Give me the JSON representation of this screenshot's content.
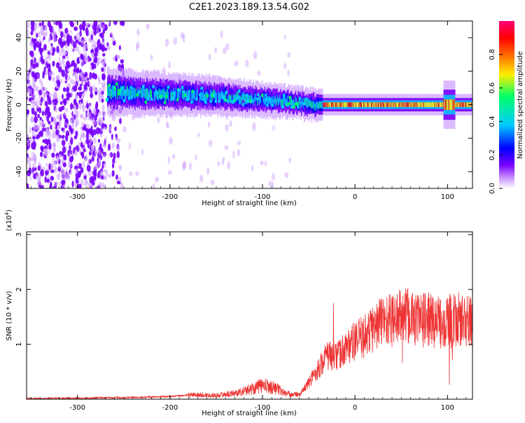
{
  "title": "C2E1.2023.189.13.54.G02",
  "spectrogram": {
    "type": "heatmap",
    "xlabel": "Height of straight line (km)",
    "ylabel": "Frequency (Hz)",
    "xlim": [
      -355,
      127
    ],
    "ylim": [
      -50,
      50
    ],
    "xticks": [
      -300,
      -200,
      -100,
      0,
      100
    ],
    "yticks": [
      40,
      20,
      0,
      -20,
      -40
    ],
    "colorbar": {
      "label": "Normalized spectral amplitude",
      "ticks": [
        "0.0",
        "0.2",
        "0.4",
        "0.6",
        "0.8"
      ],
      "colors": [
        "#ffffff",
        "#cc99ff",
        "#7700ff",
        "#0000ff",
        "#00ccff",
        "#00ff66",
        "#ffee00",
        "#ff6600",
        "#ff0000",
        "#ff00aa"
      ]
    }
  },
  "snr": {
    "type": "line",
    "xlabel": "Height of straight line (km)",
    "ylabel": "SNR (10 * v/v)",
    "scale_label": "(x10",
    "scale_exp": "4",
    "xlim": [
      -355,
      127
    ],
    "ylim": [
      0,
      3.05
    ],
    "xticks": [
      -300,
      -200,
      -100,
      0,
      100
    ],
    "yticks": [
      "3",
      "2",
      "1"
    ],
    "yticks_values": [
      3,
      2,
      1
    ],
    "color": "#ee3333"
  },
  "chart_data": [
    {
      "type": "heatmap",
      "title": "C2E1.2023.189.13.54.G02",
      "xlabel": "Height of straight line (km)",
      "ylabel": "Frequency (Hz)",
      "xlim": [
        -355,
        127
      ],
      "ylim": [
        -50,
        50
      ],
      "colorbar_label": "Normalized spectral amplitude",
      "colorbar_range": [
        0,
        1
      ],
      "ridge": {
        "x": [
          -270,
          -250,
          -200,
          -150,
          -100,
          -75,
          -60,
          -50,
          -40,
          0,
          50,
          100,
          105,
          127
        ],
        "y": [
          8,
          7,
          6,
          5,
          3,
          2,
          1,
          0,
          0,
          0,
          0,
          0,
          0,
          0
        ]
      }
    },
    {
      "type": "line",
      "xlabel": "Height of straight line (km)",
      "ylabel": "SNR (10 * v/v)",
      "y_multiplier": "x10^4",
      "xlim": [
        -355,
        127
      ],
      "ylim": [
        0,
        3.05
      ],
      "series": [
        {
          "x": [
            -355,
            -300,
            -250,
            -200,
            -175,
            -150,
            -125,
            -100,
            -85,
            -75,
            -60,
            -50,
            -40,
            -30,
            -20,
            -10,
            0,
            10,
            20,
            30,
            40,
            50,
            60,
            70,
            80,
            90,
            100,
            105,
            110,
            127
          ],
          "y": [
            0.01,
            0.02,
            0.03,
            0.05,
            0.08,
            0.07,
            0.12,
            0.25,
            0.2,
            0.1,
            0.08,
            0.3,
            0.55,
            0.8,
            0.75,
            0.95,
            1.05,
            1.15,
            1.3,
            1.45,
            1.45,
            1.5,
            1.5,
            1.45,
            1.45,
            1.4,
            1.45,
            1.4,
            1.45,
            1.4
          ]
        }
      ]
    }
  ]
}
